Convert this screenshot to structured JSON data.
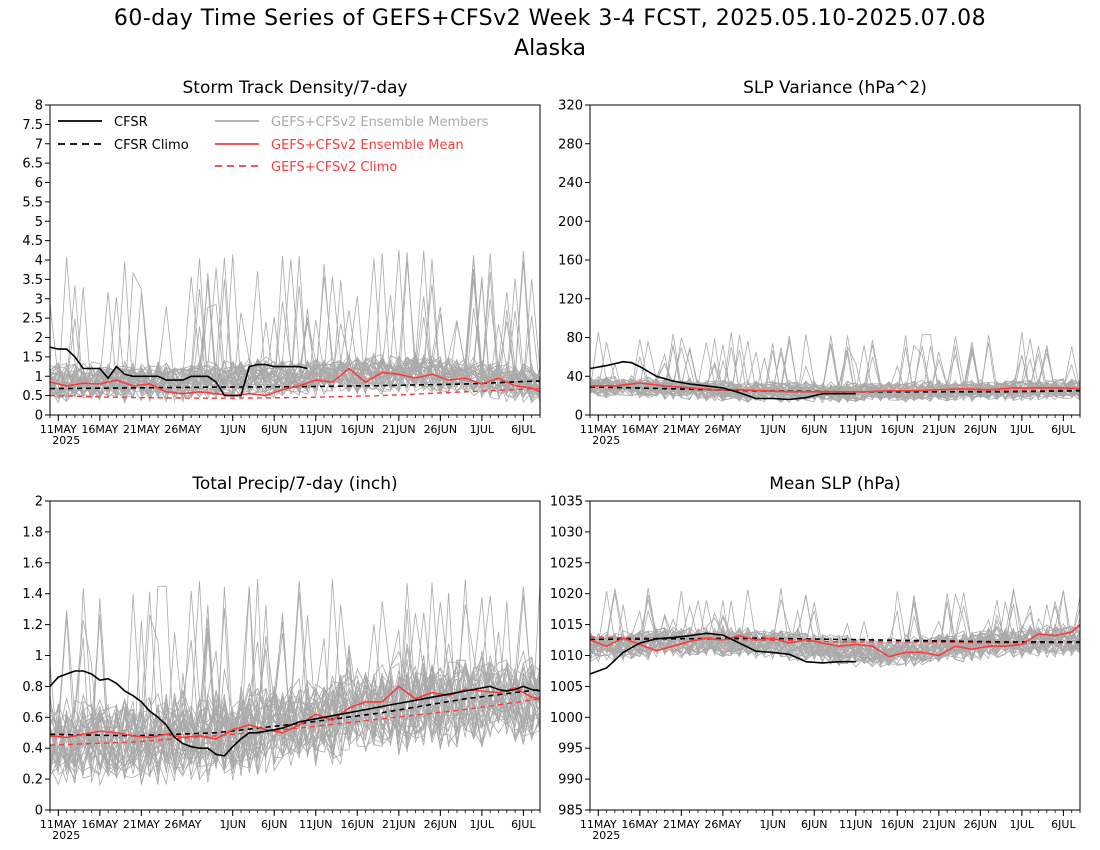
{
  "title": "60-day Time Series of GEFS+CFSv2 Week 3-4 FCST, 2025.05.10-2025.07.08",
  "region": "Alaska",
  "colors": {
    "cfsr": "#000000",
    "members": "#aaaaaa",
    "ens_mean": "#ff3a3a",
    "ens_climo": "#ff3a3a"
  },
  "legend": {
    "cfsr": "CFSR",
    "cfsr_climo": "CFSR Climo",
    "members": "GEFS+CFSv2 Ensemble Members",
    "ens_mean": "GEFS+CFSv2 Ensemble Mean",
    "ens_climo": "GEFS+CFSv2 Climo"
  },
  "x_axis": {
    "tick_labels": [
      "11MAY",
      "16MAY",
      "21MAY",
      "26MAY",
      "1JUN",
      "6JUN",
      "11JUN",
      "16JUN",
      "21JUN",
      "26JUN",
      "1JUL",
      "6JUL"
    ],
    "tick_days": [
      1,
      6,
      11,
      16,
      22,
      27,
      32,
      37,
      42,
      47,
      52,
      57
    ],
    "year_label": "2025",
    "range": [
      0,
      59
    ]
  },
  "chart_data": [
    {
      "type": "line",
      "title": "Storm Track Density/7-day",
      "ylim": [
        0,
        8
      ],
      "yticks": [
        "0",
        "0.5",
        "1",
        "1.5",
        "2",
        "2.5",
        "3",
        "3.5",
        "4",
        "4.5",
        "5",
        "5.5",
        "6",
        "6.5",
        "7",
        "7.5",
        "8"
      ],
      "series": [
        {
          "name": "CFSR",
          "x": [
            0,
            1,
            2,
            3,
            4,
            5,
            6,
            7,
            8,
            9,
            10,
            11,
            12,
            13,
            14,
            15,
            16,
            17,
            18,
            19,
            20,
            21,
            22,
            23,
            24,
            25,
            26,
            27,
            28,
            29,
            30,
            31
          ],
          "y": [
            1.75,
            1.7,
            1.7,
            1.5,
            1.2,
            1.2,
            1.2,
            0.95,
            1.25,
            1.05,
            1.0,
            1.0,
            1.0,
            1.0,
            0.9,
            0.9,
            0.9,
            1.0,
            1.0,
            1.0,
            0.85,
            0.5,
            0.5,
            0.5,
            1.25,
            1.3,
            1.3,
            1.25,
            1.25,
            1.25,
            1.25,
            1.2
          ]
        },
        {
          "name": "CFSR Climo",
          "x": [
            0,
            10,
            20,
            30,
            40,
            50,
            59
          ],
          "y": [
            0.68,
            0.7,
            0.72,
            0.73,
            0.76,
            0.8,
            0.88
          ]
        },
        {
          "name": "GEFS+CFSv2 Ensemble Mean",
          "x": [
            0,
            2,
            4,
            6,
            8,
            10,
            12,
            14,
            16,
            18,
            20,
            22,
            24,
            26,
            28,
            30,
            32,
            34,
            36,
            38,
            40,
            42,
            44,
            46,
            48,
            50,
            52,
            54,
            56,
            58,
            59
          ],
          "y": [
            0.85,
            0.75,
            0.82,
            0.8,
            0.9,
            0.75,
            0.8,
            0.6,
            0.55,
            0.6,
            0.55,
            0.5,
            0.55,
            0.5,
            0.65,
            0.75,
            0.9,
            0.85,
            1.2,
            0.85,
            1.1,
            1.05,
            0.95,
            1.05,
            0.9,
            0.95,
            0.8,
            0.95,
            0.75,
            0.7,
            0.6
          ]
        },
        {
          "name": "GEFS+CFSv2 Climo",
          "x": [
            0,
            10,
            20,
            30,
            40,
            50,
            59
          ],
          "y": [
            0.5,
            0.45,
            0.43,
            0.45,
            0.5,
            0.6,
            0.68
          ]
        }
      ],
      "members": {
        "count": 40,
        "baseline": [
          0.85,
          0.85,
          0.85,
          0.95,
          1.0,
          1.05,
          1.1,
          0.95,
          0.75
        ],
        "spread": 0.55,
        "spike_max": 4.3
      }
    },
    {
      "type": "line",
      "title": "SLP Variance (hPa^2)",
      "ylim": [
        0,
        320
      ],
      "yticks": [
        "0",
        "40",
        "80",
        "120",
        "160",
        "200",
        "240",
        "280",
        "320"
      ],
      "series": [
        {
          "name": "CFSR",
          "x": [
            0,
            2,
            4,
            5,
            6,
            8,
            10,
            12,
            14,
            16,
            18,
            20,
            22,
            24,
            26,
            28,
            30,
            32
          ],
          "y": [
            48,
            51,
            55,
            54,
            50,
            40,
            35,
            32,
            30,
            28,
            23,
            17,
            17,
            16,
            18,
            22,
            22,
            22
          ]
        },
        {
          "name": "CFSR Climo",
          "x": [
            0,
            10,
            20,
            30,
            40,
            50,
            59
          ],
          "y": [
            29,
            27,
            25,
            24,
            24,
            24,
            25
          ]
        },
        {
          "name": "GEFS+CFSv2 Ensemble Mean",
          "x": [
            0,
            3,
            6,
            9,
            12,
            15,
            18,
            21,
            24,
            27,
            30,
            33,
            36,
            39,
            42,
            45,
            48,
            51,
            54,
            57,
            59
          ],
          "y": [
            30,
            30,
            33,
            30,
            28,
            26,
            26,
            25,
            24,
            24,
            24,
            24,
            25,
            25,
            26,
            27,
            26,
            28,
            28,
            28,
            27
          ]
        },
        {
          "name": "GEFS+CFSv2 Climo",
          "x": [
            0,
            10,
            20,
            30,
            40,
            50,
            59
          ],
          "y": [
            29,
            27,
            25,
            24,
            24,
            25,
            26
          ]
        }
      ],
      "members": {
        "count": 40,
        "baseline": [
          30,
          28,
          25,
          24,
          24,
          25,
          26,
          27
        ],
        "spread": 12,
        "spike_max": 86
      }
    },
    {
      "type": "line",
      "title": "Total Precip/7-day (inch)",
      "ylim": [
        0,
        2
      ],
      "yticks": [
        "0",
        "0.2",
        "0.4",
        "0.6",
        "0.8",
        "1",
        "1.2",
        "1.4",
        "1.6",
        "1.8",
        "2"
      ],
      "series": [
        {
          "name": "CFSR",
          "x": [
            0,
            1,
            2,
            3,
            4,
            5,
            6,
            7,
            8,
            9,
            10,
            11,
            12,
            13,
            14,
            15,
            16,
            17,
            18,
            19,
            20,
            21,
            22,
            23,
            24,
            25,
            26,
            27,
            28,
            29,
            30,
            31,
            32,
            33,
            34,
            35,
            36,
            37,
            38,
            39,
            40,
            41,
            42,
            43,
            44,
            45,
            46,
            47,
            48,
            49,
            50,
            51,
            52,
            53,
            54,
            55,
            56,
            57,
            58,
            59
          ],
          "y": [
            0.8,
            0.86,
            0.88,
            0.9,
            0.9,
            0.88,
            0.84,
            0.85,
            0.82,
            0.77,
            0.74,
            0.7,
            0.64,
            0.6,
            0.55,
            0.47,
            0.43,
            0.41,
            0.4,
            0.4,
            0.36,
            0.35,
            0.41,
            0.46,
            0.5,
            0.5,
            0.51,
            0.52,
            0.53,
            0.55,
            0.57,
            0.58,
            0.59,
            0.6,
            0.61,
            0.62,
            0.63,
            0.64,
            0.65,
            0.66,
            0.67,
            0.68,
            0.69,
            0.7,
            0.71,
            0.72,
            0.73,
            0.74,
            0.75,
            0.76,
            0.77,
            0.78,
            0.79,
            0.8,
            0.78,
            0.77,
            0.78,
            0.8,
            0.78,
            0.77
          ]
        },
        {
          "name": "CFSR Climo",
          "x": [
            0,
            10,
            20,
            30,
            40,
            50,
            59
          ],
          "y": [
            0.49,
            0.48,
            0.5,
            0.56,
            0.63,
            0.72,
            0.78
          ]
        },
        {
          "name": "GEFS+CFSv2 Ensemble Mean",
          "x": [
            0,
            2,
            4,
            6,
            8,
            10,
            12,
            14,
            16,
            18,
            20,
            22,
            24,
            26,
            28,
            30,
            32,
            34,
            36,
            38,
            40,
            42,
            44,
            46,
            48,
            50,
            52,
            54,
            56,
            58,
            59
          ],
          "y": [
            0.48,
            0.47,
            0.49,
            0.51,
            0.5,
            0.48,
            0.47,
            0.49,
            0.47,
            0.48,
            0.46,
            0.52,
            0.55,
            0.52,
            0.5,
            0.55,
            0.62,
            0.58,
            0.66,
            0.7,
            0.7,
            0.8,
            0.72,
            0.76,
            0.74,
            0.78,
            0.77,
            0.76,
            0.79,
            0.73,
            0.72
          ]
        },
        {
          "name": "GEFS+CFSv2 Climo",
          "x": [
            0,
            10,
            20,
            30,
            40,
            50,
            59
          ],
          "y": [
            0.42,
            0.44,
            0.48,
            0.53,
            0.59,
            0.65,
            0.72
          ]
        }
      ],
      "members": {
        "count": 40,
        "baseline": [
          0.45,
          0.45,
          0.46,
          0.5,
          0.56,
          0.63,
          0.68,
          0.72,
          0.72
        ],
        "spread": 0.32,
        "spike_max": 1.5
      }
    },
    {
      "type": "line",
      "title": "Mean SLP (hPa)",
      "ylim": [
        985,
        1035
      ],
      "yticks": [
        "985",
        "990",
        "995",
        "1000",
        "1005",
        "1010",
        "1015",
        "1020",
        "1025",
        "1030",
        "1035"
      ],
      "series": [
        {
          "name": "CFSR",
          "x": [
            0,
            2,
            4,
            6,
            8,
            10,
            12,
            14,
            16,
            18,
            20,
            22,
            24,
            26,
            28,
            30,
            32
          ],
          "y": [
            1007,
            1008,
            1010.5,
            1012,
            1012.7,
            1012.9,
            1013.2,
            1013.6,
            1013.3,
            1012,
            1010.7,
            1010.5,
            1010.2,
            1009,
            1008.8,
            1009,
            1009
          ]
        },
        {
          "name": "CFSR Climo",
          "x": [
            0,
            10,
            20,
            30,
            40,
            50,
            59
          ],
          "y": [
            1012.6,
            1012.7,
            1012.8,
            1012.6,
            1012.4,
            1012.2,
            1012.2
          ]
        },
        {
          "name": "GEFS+CFSv2 Ensemble Mean",
          "x": [
            0,
            2,
            4,
            6,
            8,
            10,
            12,
            14,
            16,
            18,
            20,
            22,
            24,
            26,
            28,
            30,
            32,
            34,
            36,
            38,
            40,
            42,
            44,
            46,
            48,
            50,
            52,
            54,
            56,
            58,
            59
          ],
          "y": [
            1012.5,
            1011.5,
            1012.8,
            1011.8,
            1010.8,
            1011.5,
            1012.3,
            1012.8,
            1012.5,
            1013.2,
            1012.5,
            1012.8,
            1012,
            1012.6,
            1012,
            1011.5,
            1011.8,
            1011.5,
            1009.8,
            1010.5,
            1010.5,
            1010,
            1011.5,
            1011,
            1011.5,
            1011.5,
            1011.8,
            1013.5,
            1013.2,
            1013.8,
            1015
          ]
        },
        {
          "name": "GEFS+CFSv2 Climo",
          "x": [
            0,
            10,
            20,
            30,
            40,
            50,
            59
          ],
          "y": [
            1013,
            1012.8,
            1012.5,
            1012.2,
            1012.2,
            1012,
            1012
          ]
        }
      ],
      "members": {
        "count": 40,
        "baseline": [
          1011.5,
          1012,
          1012.3,
          1012,
          1011,
          1010.5,
          1011.5,
          1012.3,
          1012.5
        ],
        "spread": 2.8,
        "spike_max": 1021
      }
    }
  ]
}
